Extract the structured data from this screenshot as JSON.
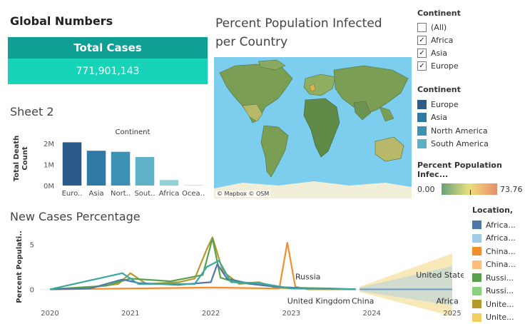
{
  "global_numbers": {
    "title": "Global Numbers",
    "total_cases_label": "Total Cases",
    "total_cases_value": "771,901,143"
  },
  "map": {
    "title_line1": "Percent Population Infected",
    "title_line2": "per Country",
    "attribution": "© Mapbox  © OSM"
  },
  "continent_filter": {
    "title": "Continent",
    "items": [
      {
        "label": "(All)",
        "checked": false
      },
      {
        "label": "Africa",
        "checked": true
      },
      {
        "label": "Asia",
        "checked": true
      },
      {
        "label": "Europe",
        "checked": true
      }
    ]
  },
  "continent_legend": {
    "title": "Continent",
    "items": [
      {
        "label": "Europe",
        "color": "#2f5b87"
      },
      {
        "label": "Asia",
        "color": "#2e7aa3"
      },
      {
        "label": "North America",
        "color": "#3a93b3"
      },
      {
        "label": "South America",
        "color": "#5bb0c6"
      }
    ]
  },
  "ppi_legend": {
    "title": "Percent Population Infec...",
    "min": "0.00",
    "max": "73.76"
  },
  "sheet2": {
    "title": "Sheet 2"
  },
  "location_legend": {
    "title": "Location,",
    "items": [
      {
        "label": "Africa...",
        "color": "#4e79a7"
      },
      {
        "label": "Africa...",
        "color": "#a0cbe8"
      },
      {
        "label": "China...",
        "color": "#f28e2b"
      },
      {
        "label": "China...",
        "color": "#ffbe7d"
      },
      {
        "label": "Russi...",
        "color": "#59a14f"
      },
      {
        "label": "Russi...",
        "color": "#8cd17d"
      },
      {
        "label": "Unite...",
        "color": "#b6992d"
      },
      {
        "label": "Unite...",
        "color": "#f1ce63"
      }
    ]
  },
  "new_cases": {
    "title": "New Cases Percentage"
  },
  "chart_data": [
    {
      "type": "bar",
      "title": "Continent",
      "ylabel": "Total Death Count",
      "categories": [
        "Euro..",
        "Asia",
        "Nort..",
        "Sout..",
        "Africa",
        "Ocea.."
      ],
      "values": [
        2.05,
        1.65,
        1.6,
        1.35,
        0.26,
        0.03
      ],
      "colors": [
        "#2c5a89",
        "#2f7aa4",
        "#3b92b4",
        "#5fb1c8",
        "#8fd3d6",
        "#b7e6e8"
      ],
      "y_ticks": [
        "0M",
        "1M",
        "2M"
      ],
      "ylim": [
        0,
        2.3
      ]
    },
    {
      "type": "line",
      "title": "",
      "ylabel": "Percent Populati..",
      "x_ticks": [
        "2020",
        "2021",
        "2022",
        "2023",
        "2024",
        "2025"
      ],
      "y_ticks": [
        "0",
        "5"
      ],
      "xlim": [
        2020,
        2025
      ],
      "ylim": [
        -1,
        6
      ],
      "annotations": [
        "Russia",
        "United States",
        "United Kingdom",
        "China",
        "Africa"
      ],
      "series": [
        {
          "color": "#b6992d",
          "points": [
            [
              2020,
              0
            ],
            [
              2020.5,
              0.2
            ],
            [
              2020.85,
              0.6
            ],
            [
              2021,
              1.8
            ],
            [
              2021.2,
              0.6
            ],
            [
              2021.6,
              0.8
            ],
            [
              2021.8,
              1.2
            ],
            [
              2021.95,
              4.5
            ],
            [
              2022.02,
              5.8
            ],
            [
              2022.15,
              2.0
            ],
            [
              2022.35,
              0.6
            ],
            [
              2022.6,
              0.8
            ],
            [
              2022.8,
              0.2
            ],
            [
              2023,
              0.1
            ],
            [
              2023.8,
              0
            ]
          ]
        },
        {
          "color": "#f28e2b",
          "points": [
            [
              2020,
              0
            ],
            [
              2021,
              0.1
            ],
            [
              2022,
              0.2
            ],
            [
              2022.85,
              0.1
            ],
            [
              2022.95,
              5.2
            ],
            [
              2023.05,
              0.3
            ],
            [
              2023.2,
              0
            ],
            [
              2023.8,
              0
            ]
          ]
        },
        {
          "color": "#59a14f",
          "points": [
            [
              2020,
              0
            ],
            [
              2020.7,
              0.4
            ],
            [
              2021,
              1.2
            ],
            [
              2021.5,
              0.9
            ],
            [
              2021.9,
              1.6
            ],
            [
              2022.02,
              5.7
            ],
            [
              2022.12,
              1.3
            ],
            [
              2022.3,
              0.8
            ],
            [
              2022.6,
              0.5
            ],
            [
              2022.9,
              0.2
            ],
            [
              2023.5,
              0.1
            ],
            [
              2023.8,
              0
            ]
          ]
        },
        {
          "color": "#4e79a7",
          "points": [
            [
              2020,
              0
            ],
            [
              2020.5,
              0.1
            ],
            [
              2020.9,
              1.1
            ],
            [
              2021.1,
              0.7
            ],
            [
              2021.6,
              0.5
            ],
            [
              2022,
              0.8
            ],
            [
              2022.08,
              2.8
            ],
            [
              2022.2,
              1.2
            ],
            [
              2022.5,
              0.6
            ],
            [
              2022.8,
              0.3
            ],
            [
              2023.2,
              0.1
            ],
            [
              2023.8,
              0
            ]
          ]
        },
        {
          "color": "#3aa89f",
          "points": [
            [
              2020,
              0
            ],
            [
              2020.9,
              1.8
            ],
            [
              2021.1,
              0.6
            ],
            [
              2021.8,
              0.6
            ],
            [
              2021.95,
              2.5
            ],
            [
              2022.1,
              3.2
            ],
            [
              2022.25,
              0.8
            ],
            [
              2022.6,
              0.7
            ],
            [
              2023,
              0.1
            ],
            [
              2023.8,
              0
            ]
          ]
        }
      ]
    }
  ]
}
